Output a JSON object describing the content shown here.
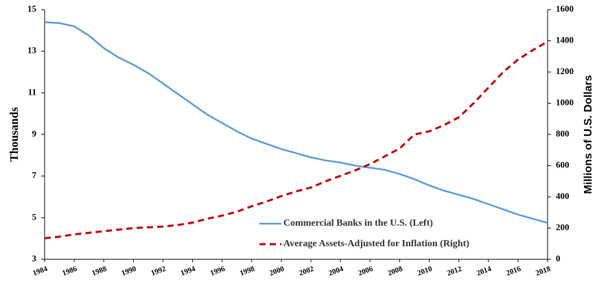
{
  "chart_data": {
    "type": "line",
    "y_label": "Thousands",
    "y2_label": "Millions of U.S. Dollars",
    "x": [
      1984,
      1985,
      1986,
      1987,
      1988,
      1989,
      1990,
      1991,
      1992,
      1993,
      1994,
      1995,
      1996,
      1997,
      1998,
      1999,
      2000,
      2001,
      2002,
      2003,
      2004,
      2005,
      2006,
      2007,
      2008,
      2009,
      2010,
      2011,
      2012,
      2013,
      2014,
      2015,
      2016,
      2017,
      2018
    ],
    "xlim": [
      1984,
      2018
    ],
    "xticks": [
      1984,
      1986,
      1988,
      1990,
      1992,
      1994,
      1996,
      1998,
      2000,
      2002,
      2004,
      2006,
      2008,
      2010,
      2012,
      2014,
      2016,
      2018
    ],
    "ylim": [
      3,
      15
    ],
    "yticks": [
      3,
      5,
      7,
      9,
      11,
      13,
      15
    ],
    "y2lim": [
      0,
      1600
    ],
    "y2ticks": [
      0,
      200,
      400,
      600,
      800,
      1000,
      1200,
      1400,
      1600
    ],
    "legend": "lower right",
    "series": [
      {
        "name": "Commercial Banks in the U.S. (Left)",
        "color": "#5b9bd5",
        "dash": "solid",
        "values": [
          14.4,
          14.35,
          14.2,
          13.75,
          13.15,
          12.7,
          12.35,
          11.95,
          11.45,
          10.95,
          10.45,
          9.95,
          9.55,
          9.15,
          8.8,
          8.55,
          8.3,
          8.1,
          7.9,
          7.75,
          7.65,
          7.5,
          7.4,
          7.3,
          7.1,
          6.85,
          6.55,
          6.3,
          6.1,
          5.9,
          5.65,
          5.4,
          5.15,
          4.95,
          4.75
        ]
      },
      {
        "name": "Average Assets-Adjusted for Inflation (Right)",
        "color": "#c00000",
        "dash": "dashed",
        "axis": "y2",
        "values": [
          135,
          145,
          160,
          170,
          180,
          190,
          200,
          205,
          210,
          220,
          235,
          260,
          280,
          305,
          340,
          370,
          405,
          435,
          460,
          500,
          535,
          570,
          610,
          660,
          710,
          800,
          820,
          860,
          910,
          1000,
          1100,
          1200,
          1280,
          1340,
          1395
        ]
      }
    ]
  }
}
